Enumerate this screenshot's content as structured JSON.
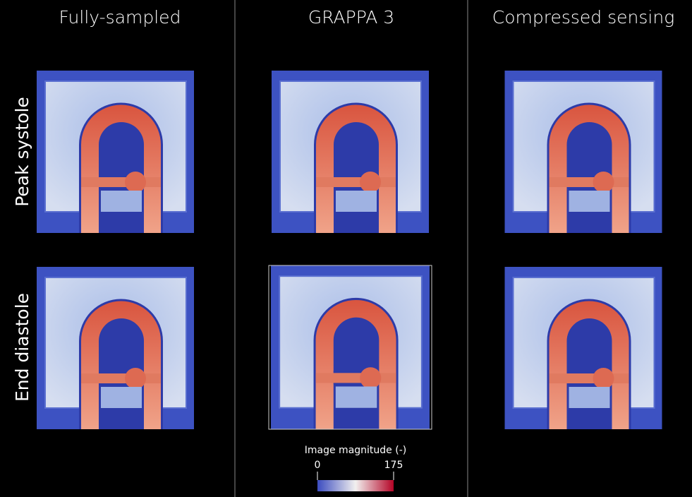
{
  "columns": [
    "Fully-sampled",
    "GRAPPA 3",
    "Compressed sensing"
  ],
  "rows": [
    "Peak systole",
    "End diastole"
  ],
  "colorbar": {
    "title": "Image magnitude (-)",
    "lim": [
      0,
      175
    ],
    "ticks": [
      0,
      175
    ]
  }
}
